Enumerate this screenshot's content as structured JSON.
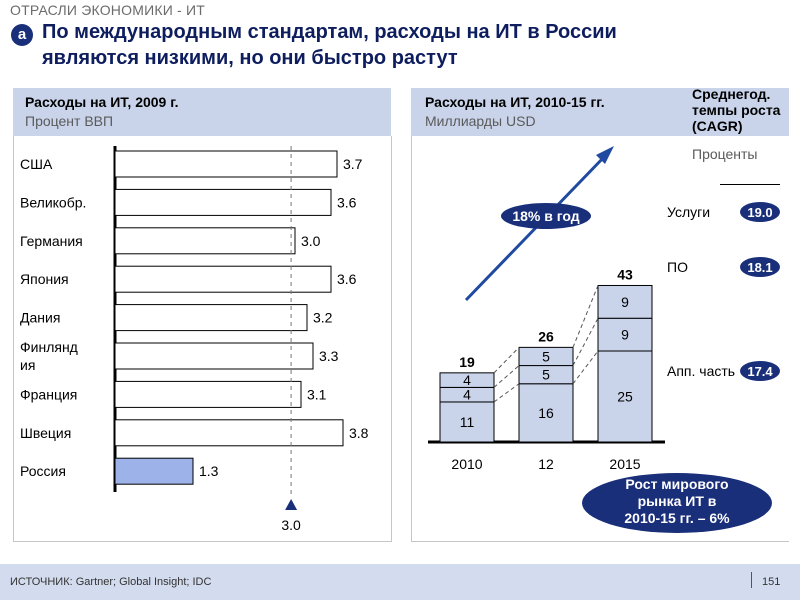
{
  "header": {
    "section_label": "ОТРАСЛИ ЭКОНОМИКИ - ИТ",
    "badge": "a",
    "title_line1": "По международным стандартам, расходы на ИТ в России",
    "title_line2": "являются низкими, но они быстро растут"
  },
  "left_panel": {
    "title": "Расходы на ИТ, 2009 г.",
    "subtitle": "Процент ВВП"
  },
  "right_panel": {
    "title": "Расходы на ИТ, 2010-15 гг.",
    "subtitle": "Миллиарды USD"
  },
  "cagr_header": {
    "title_lines": [
      "Среднегод.",
      "темпы роста",
      "(CAGR)"
    ],
    "subtitle": "Проценты"
  },
  "colors": {
    "bar": "#ffffff",
    "bar_border": "#000000",
    "highlight_bar": "#9eb2ea",
    "stack": "#c9d4ea",
    "navy": "#1a2f7a",
    "arrow": "#1f4aa0",
    "panel_head": "#c9d4ea"
  },
  "chart_data": [
    {
      "type": "bar",
      "orientation": "horizontal",
      "title": "Расходы на ИТ, 2009 г.",
      "subtitle": "Процент ВВП",
      "categories": [
        [
          "США"
        ],
        [
          "Великобр."
        ],
        [
          "Германия"
        ],
        [
          "Япония"
        ],
        [
          "Дания"
        ],
        [
          "Финлянд",
          "ия"
        ],
        [
          "Франция"
        ],
        [
          "Швеция"
        ],
        [
          "Россия"
        ]
      ],
      "values": [
        3.7,
        3.6,
        3.0,
        3.6,
        3.2,
        3.3,
        3.1,
        3.8,
        1.3
      ],
      "value_labels": [
        "3.7",
        "3.6",
        "3.0",
        "3.6",
        "3.2",
        "3.3",
        "3.1",
        "3.8",
        "1.3"
      ],
      "highlight": "Россия",
      "reference_line": {
        "value": 3.0,
        "label": "3.0"
      },
      "xlim": [
        0,
        4.0
      ]
    },
    {
      "type": "bar",
      "stacked": true,
      "title": "Расходы на ИТ, 2010-15 гг.",
      "subtitle": "Миллиарды USD",
      "categories": [
        "2010",
        "12",
        "2015"
      ],
      "series": [
        {
          "name": "Апп. часть",
          "values": [
            11,
            16,
            25
          ]
        },
        {
          "name": "ПО",
          "values": [
            4,
            5,
            9
          ]
        },
        {
          "name": "Услуги",
          "values": [
            4,
            5,
            9
          ]
        }
      ],
      "totals": [
        19,
        26,
        43
      ],
      "cagr": [
        {
          "label": "Услуги",
          "value": "19.0"
        },
        {
          "label": "ПО",
          "value": "18.1"
        },
        {
          "label": "Апп. часть",
          "value": "17.4"
        }
      ],
      "growth_callout": "18% в год",
      "world_callout": [
        "Рост мирового",
        "рынка ИТ в",
        "2010-15 гг. – 6%"
      ],
      "ylim": [
        0,
        43
      ]
    }
  ],
  "footer": {
    "source": "ИСТОЧНИК:  Gartner; Global Insight; IDC",
    "page": "151"
  }
}
